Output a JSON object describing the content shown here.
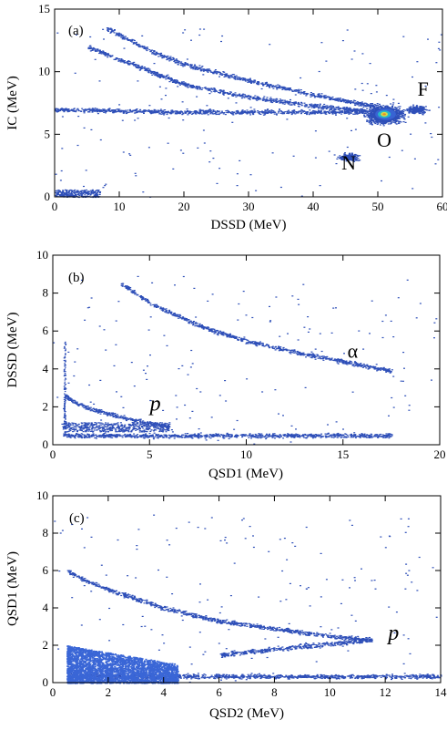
{
  "colors": {
    "points": "#2e4fb8",
    "dense_low": "#3a66d6",
    "hot_mid": "#26c0c8",
    "hot_high": "#e8e03a",
    "hot_peak": "#f08020"
  },
  "chart_data": [
    {
      "type": "scatter",
      "label": "(a)",
      "xlabel": "DSSD (MeV)",
      "ylabel": "IC (MeV)",
      "xlim": [
        0,
        60
      ],
      "ylim": [
        0,
        15
      ],
      "xticks": [
        0,
        10,
        20,
        30,
        40,
        50,
        60
      ],
      "yticks": [
        0,
        5,
        10,
        15
      ],
      "grid": false,
      "annotations": [
        {
          "text": "F",
          "x": 57,
          "y": 8.1
        },
        {
          "text": "O",
          "x": 51,
          "y": 4.0
        },
        {
          "text": "N",
          "x": 45.5,
          "y": 2.2
        }
      ],
      "bands": [
        {
          "x": [
            8,
            15,
            20,
            30,
            40,
            45,
            50
          ],
          "y": [
            13.5,
            11.6,
            10.6,
            9.3,
            8.2,
            7.7,
            7.2
          ]
        },
        {
          "x": [
            5,
            10,
            15,
            20,
            25,
            30,
            40,
            48
          ],
          "y": [
            12.0,
            11.0,
            10.0,
            9.0,
            8.5,
            8.0,
            7.3,
            6.9
          ]
        },
        {
          "x": [
            0,
            10,
            20,
            30,
            40,
            48
          ],
          "y": [
            7.0,
            6.9,
            6.8,
            6.8,
            6.8,
            6.8
          ]
        }
      ],
      "clusters": [
        {
          "x": 51,
          "y": 6.6,
          "note": "O"
        },
        {
          "x": 56,
          "y": 7.0,
          "note": "F"
        },
        {
          "x": 45.5,
          "y": 3.2,
          "note": "N"
        }
      ]
    },
    {
      "type": "scatter",
      "label": "(b)",
      "xlabel": "QSD1 (MeV)",
      "ylabel": "DSSD (MeV)",
      "xlim": [
        0,
        20
      ],
      "ylim": [
        0,
        10
      ],
      "xticks": [
        0,
        5,
        10,
        15,
        20
      ],
      "yticks": [
        0,
        2,
        4,
        6,
        8,
        10
      ],
      "grid": false,
      "annotations": [
        {
          "text": "α",
          "x": 15.5,
          "y": 4.6
        },
        {
          "text": "p",
          "x": 5.3,
          "y": 1.8,
          "italic": true
        }
      ],
      "bands": [
        {
          "name": "α",
          "x": [
            3.5,
            5,
            7.5,
            10,
            12.5,
            15,
            17.5
          ],
          "y": [
            8.5,
            7.5,
            6.3,
            5.5,
            4.9,
            4.4,
            3.9
          ]
        },
        {
          "name": "p",
          "x": [
            0.6,
            1,
            2,
            3,
            4,
            5,
            6
          ],
          "y": [
            2.6,
            2.3,
            1.9,
            1.6,
            1.35,
            1.15,
            1.0
          ]
        },
        {
          "x": [
            0.5,
            17.5
          ],
          "y": [
            0.5,
            0.5
          ]
        }
      ]
    },
    {
      "type": "scatter",
      "label": "(c)",
      "xlabel": "QSD2 (MeV)",
      "ylabel": "QSD1 (MeV)",
      "xlim": [
        0,
        14
      ],
      "ylim": [
        0,
        10
      ],
      "xticks": [
        0,
        2,
        4,
        6,
        8,
        10,
        12,
        14
      ],
      "yticks": [
        0,
        2,
        4,
        6,
        8,
        10
      ],
      "grid": false,
      "annotations": [
        {
          "text": "p",
          "x": 12.3,
          "y": 2.3,
          "italic": true
        }
      ],
      "bands": [
        {
          "name": "p",
          "x": [
            0.5,
            1,
            2,
            4,
            6,
            8,
            10,
            11.5
          ],
          "y": [
            6.0,
            5.6,
            5.0,
            4.0,
            3.3,
            2.9,
            2.5,
            2.3
          ]
        },
        {
          "x": [
            6,
            8,
            10,
            11.5
          ],
          "y": [
            1.5,
            1.8,
            2.1,
            2.3
          ]
        },
        {
          "x": [
            0.5,
            14
          ],
          "y": [
            0.35,
            0.35
          ]
        }
      ],
      "dense_region": {
        "x": [
          0.5,
          4.5
        ],
        "y": [
          0,
          2
        ]
      }
    }
  ]
}
